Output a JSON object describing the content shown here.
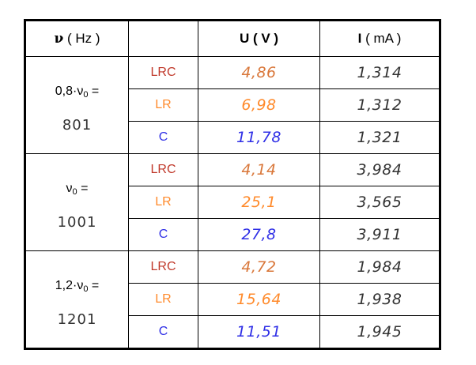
{
  "header": {
    "nu_col": {
      "symbol": "ν",
      "unit": "( Hz )"
    },
    "u_col": {
      "symbol": "U",
      "unit": "( V )"
    },
    "i_col": {
      "symbol": "I",
      "unit": "( mA )"
    }
  },
  "groups": [
    {
      "label_prefix": "0,8·ν",
      "label_sub": "0",
      "label_suffix": " =",
      "freq": "801",
      "rows": [
        {
          "circuit": "LRC",
          "U": "4,86",
          "I": "1,314"
        },
        {
          "circuit": "LR",
          "U": "6,98",
          "I": "1,312"
        },
        {
          "circuit": "C",
          "U": "11,78",
          "I": "1,321"
        }
      ]
    },
    {
      "label_prefix": "ν",
      "label_sub": "0",
      "label_suffix": " =",
      "freq": "1001",
      "rows": [
        {
          "circuit": "LRC",
          "U": "4,14",
          "I": "3,984"
        },
        {
          "circuit": "LR",
          "U": "25,1",
          "I": "3,565"
        },
        {
          "circuit": "C",
          "U": "27,8",
          "I": "3,911"
        }
      ]
    },
    {
      "label_prefix": "1,2·ν",
      "label_sub": "0",
      "label_suffix": " =",
      "freq": "1201",
      "rows": [
        {
          "circuit": "LRC",
          "U": "4,72",
          "I": "1,984"
        },
        {
          "circuit": "LR",
          "U": "15,64",
          "I": "1,938"
        },
        {
          "circuit": "C",
          "U": "11,51",
          "I": "1,945"
        }
      ]
    }
  ],
  "colors": {
    "LRC": "#c0392b",
    "LR": "#ff8a2b",
    "C": "#2f2fe6",
    "U_LRC": "#d9773a"
  }
}
